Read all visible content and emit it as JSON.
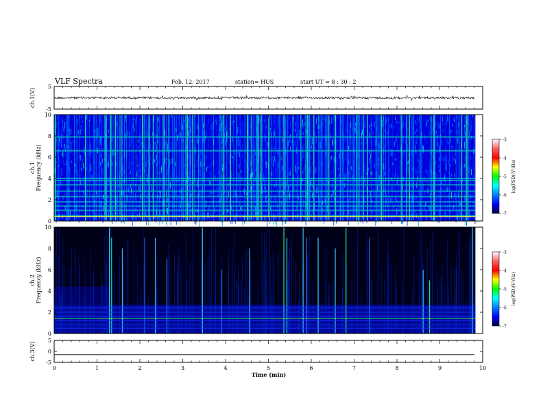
{
  "header": {
    "title": "VLF Spectra",
    "date": "Feb. 12, 2017",
    "station": "station= HUS",
    "start": "start  UT =   8  : 30 : 2"
  },
  "colorbar": {
    "label": "log(PSD)(V²/Hz)",
    "ticks": [
      "-3",
      "-4",
      "-5",
      "-6",
      "-7"
    ],
    "stops": [
      "#ffffff",
      "#ff6060",
      "#ff0000",
      "#ffff00",
      "#00ff00",
      "#00ffff",
      "#0080ff",
      "#0000ff",
      "#000040"
    ]
  },
  "chart_data": [
    {
      "type": "line",
      "ylabel": "ch.1(V)",
      "ylim": [
        -5,
        5
      ],
      "yticks": [
        "5",
        "-5"
      ],
      "xlim": [
        0,
        10
      ],
      "series": [
        {
          "baseline": 0
        }
      ]
    },
    {
      "type": "heatmap",
      "ylabel": "ch.1\nFrequency (kHz)",
      "ylim": [
        0,
        10
      ],
      "yticks": [
        "0",
        "2",
        "4",
        "6",
        "8",
        "10"
      ],
      "xlim": [
        0,
        9.83
      ],
      "zrange": [
        -7,
        -3
      ],
      "background": "#0000dd",
      "noise_band_color": "#00d0c0",
      "bands_khz": [
        0.5,
        1.0,
        1.4,
        1.8,
        2.3,
        2.8,
        3.4,
        3.8,
        4.0,
        6.6,
        7.9
      ],
      "bursts_min": [
        0.02,
        0.72,
        1.2,
        1.3,
        1.42,
        1.55,
        2.05,
        2.2,
        2.3,
        2.55,
        3.1,
        3.22,
        3.95,
        4.1,
        4.5,
        4.6,
        4.75,
        4.82,
        5.0,
        5.35,
        5.9,
        6.05,
        6.4,
        6.55,
        7.3,
        7.62,
        8.1,
        8.28,
        8.85,
        9.5,
        9.62
      ]
    },
    {
      "type": "heatmap",
      "ylabel": "ch.2\nFrequency (kHz)",
      "ylim": [
        0,
        10
      ],
      "yticks": [
        "0",
        "2",
        "4",
        "6",
        "8",
        "10"
      ],
      "xlim": [
        0,
        9.83
      ],
      "zrange": [
        -7,
        -3
      ],
      "background": "#000018",
      "noise_band_color": "#1030ff",
      "bands_khz": [
        0.5,
        0.8,
        1.2,
        1.6,
        2.0,
        2.4
      ],
      "whistlers": [
        {
          "t": 1.28,
          "fmax": 10,
          "c": "#40e0ff"
        },
        {
          "t": 1.33,
          "fmax": 9,
          "c": "#00ff80"
        },
        {
          "t": 1.58,
          "fmax": 8,
          "c": "#40d0ff"
        },
        {
          "t": 2.1,
          "fmax": 9,
          "c": "#2060ff"
        },
        {
          "t": 2.35,
          "fmax": 9,
          "c": "#40d0ff"
        },
        {
          "t": 2.62,
          "fmax": 7,
          "c": "#2090ff"
        },
        {
          "t": 3.45,
          "fmax": 10,
          "c": "#40e0ff"
        },
        {
          "t": 3.9,
          "fmax": 6,
          "c": "#2080ff"
        },
        {
          "t": 4.55,
          "fmax": 8,
          "c": "#40d0ff"
        },
        {
          "t": 5.35,
          "fmax": 10,
          "c": "#30ff90"
        },
        {
          "t": 5.42,
          "fmax": 9,
          "c": "#40e0ff"
        },
        {
          "t": 5.8,
          "fmax": 10,
          "c": "#40d0ff"
        },
        {
          "t": 5.88,
          "fmax": 9,
          "c": "#2080ff"
        },
        {
          "t": 6.15,
          "fmax": 9,
          "c": "#40e0ff"
        },
        {
          "t": 6.55,
          "fmax": 8,
          "c": "#40d0ff"
        },
        {
          "t": 6.8,
          "fmax": 10,
          "c": "#30ff90"
        },
        {
          "t": 7.35,
          "fmax": 9,
          "c": "#2080ff"
        },
        {
          "t": 8.6,
          "fmax": 6,
          "c": "#40d0ff"
        },
        {
          "t": 8.75,
          "fmax": 5,
          "c": "#30ff90"
        },
        {
          "t": 9.75,
          "fmax": 10,
          "c": "#40e0ff"
        }
      ]
    },
    {
      "type": "line",
      "ylabel": "ch.3(V)",
      "ylim": [
        -5,
        5
      ],
      "yticks": [
        "5",
        "0",
        "-5"
      ],
      "xlim": [
        0,
        9.83
      ],
      "xlabel": "Time  (min)",
      "xticks": [
        "0",
        "1",
        "2",
        "3",
        "4",
        "5",
        "6",
        "7",
        "8",
        "9",
        "10"
      ],
      "series": [
        {
          "baseline": -1.5
        }
      ]
    }
  ]
}
